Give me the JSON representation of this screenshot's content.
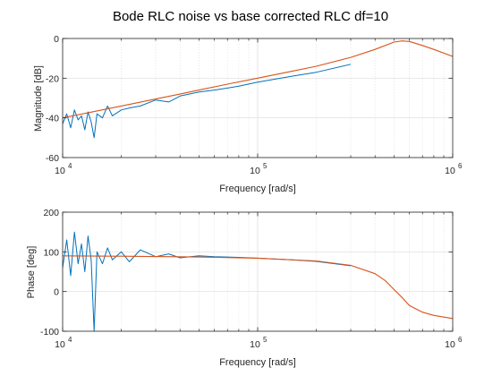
{
  "figure": {
    "title": "Bode RLC noise vs base corrected RLC df=10"
  },
  "chart_data": [
    {
      "type": "line",
      "id": "magnitude",
      "title": "Bode RLC noise vs base corrected RLC df=10",
      "xlabel": "Frequency [rad/s]",
      "ylabel": "Magnitude [dB]",
      "xscale": "log",
      "xlim": [
        10000,
        1000000
      ],
      "ylim": [
        -60,
        0
      ],
      "xticks": [
        {
          "value": 10000,
          "base": "10",
          "exp": "4"
        },
        {
          "value": 100000,
          "base": "10",
          "exp": "5"
        },
        {
          "value": 1000000,
          "base": "10",
          "exp": "6"
        }
      ],
      "yticks": [
        {
          "value": -60,
          "label": "-60"
        },
        {
          "value": -40,
          "label": "-40"
        },
        {
          "value": -20,
          "label": "-20"
        },
        {
          "value": 0,
          "label": "0"
        }
      ],
      "grid": true,
      "colors": {
        "noisy": "#0072BD",
        "corrected": "#D95319"
      },
      "series": [
        {
          "key": "noisy",
          "x": [
            10000,
            10500,
            11000,
            11500,
            12000,
            12500,
            13000,
            13500,
            14000,
            14500,
            15000,
            16000,
            17000,
            18000,
            20000,
            22000,
            25000,
            30000,
            35000,
            40000,
            50000,
            60000,
            70000,
            80000,
            100000,
            150000,
            200000,
            300000
          ],
          "y": [
            -43,
            -38,
            -45,
            -36,
            -41,
            -39,
            -46,
            -37,
            -42,
            -50,
            -38,
            -40,
            -34,
            -39,
            -36,
            -35,
            -34,
            -31,
            -32,
            -29,
            -27,
            -26,
            -25,
            -24,
            -22,
            -19,
            -17,
            -13
          ]
        },
        {
          "key": "corrected",
          "x": [
            10000,
            15000,
            20000,
            30000,
            40000,
            50000,
            70000,
            100000,
            150000,
            200000,
            300000,
            400000,
            500000,
            550000,
            600000,
            700000,
            800000,
            1000000
          ],
          "y": [
            -40,
            -36.5,
            -34,
            -30.5,
            -28,
            -26,
            -23,
            -20,
            -16.5,
            -14,
            -9.5,
            -5.5,
            -1.8,
            -1.2,
            -1.5,
            -3.5,
            -5.5,
            -9
          ]
        }
      ]
    },
    {
      "type": "line",
      "id": "phase",
      "xlabel": "Frequency [rad/s]",
      "ylabel": "Phase [deg]",
      "xscale": "log",
      "xlim": [
        10000,
        1000000
      ],
      "ylim": [
        -100,
        200
      ],
      "xticks": [
        {
          "value": 10000,
          "base": "10",
          "exp": "4"
        },
        {
          "value": 100000,
          "base": "10",
          "exp": "5"
        },
        {
          "value": 1000000,
          "base": "10",
          "exp": "6"
        }
      ],
      "yticks": [
        {
          "value": -100,
          "label": "-100"
        },
        {
          "value": 0,
          "label": "0"
        },
        {
          "value": 100,
          "label": "100"
        },
        {
          "value": 200,
          "label": "200"
        }
      ],
      "grid": true,
      "colors": {
        "noisy": "#0072BD",
        "corrected": "#D95319"
      },
      "series": [
        {
          "key": "noisy",
          "x": [
            10000,
            10500,
            11000,
            11500,
            12000,
            12500,
            13000,
            13500,
            14000,
            14500,
            15000,
            16000,
            17000,
            18000,
            20000,
            22000,
            25000,
            30000,
            35000,
            40000,
            50000,
            60000,
            80000,
            100000,
            150000,
            200000,
            300000
          ],
          "y": [
            60,
            130,
            40,
            150,
            70,
            120,
            50,
            140,
            80,
            -100,
            100,
            70,
            110,
            80,
            100,
            75,
            105,
            88,
            95,
            85,
            90,
            88,
            86,
            84,
            80,
            76,
            65
          ]
        },
        {
          "key": "corrected",
          "x": [
            10000,
            20000,
            50000,
            100000,
            200000,
            300000,
            400000,
            450000,
            500000,
            550000,
            600000,
            700000,
            800000,
            1000000
          ],
          "y": [
            90,
            89,
            87,
            84,
            77,
            66,
            45,
            28,
            5,
            -15,
            -35,
            -52,
            -60,
            -68
          ]
        }
      ]
    }
  ]
}
